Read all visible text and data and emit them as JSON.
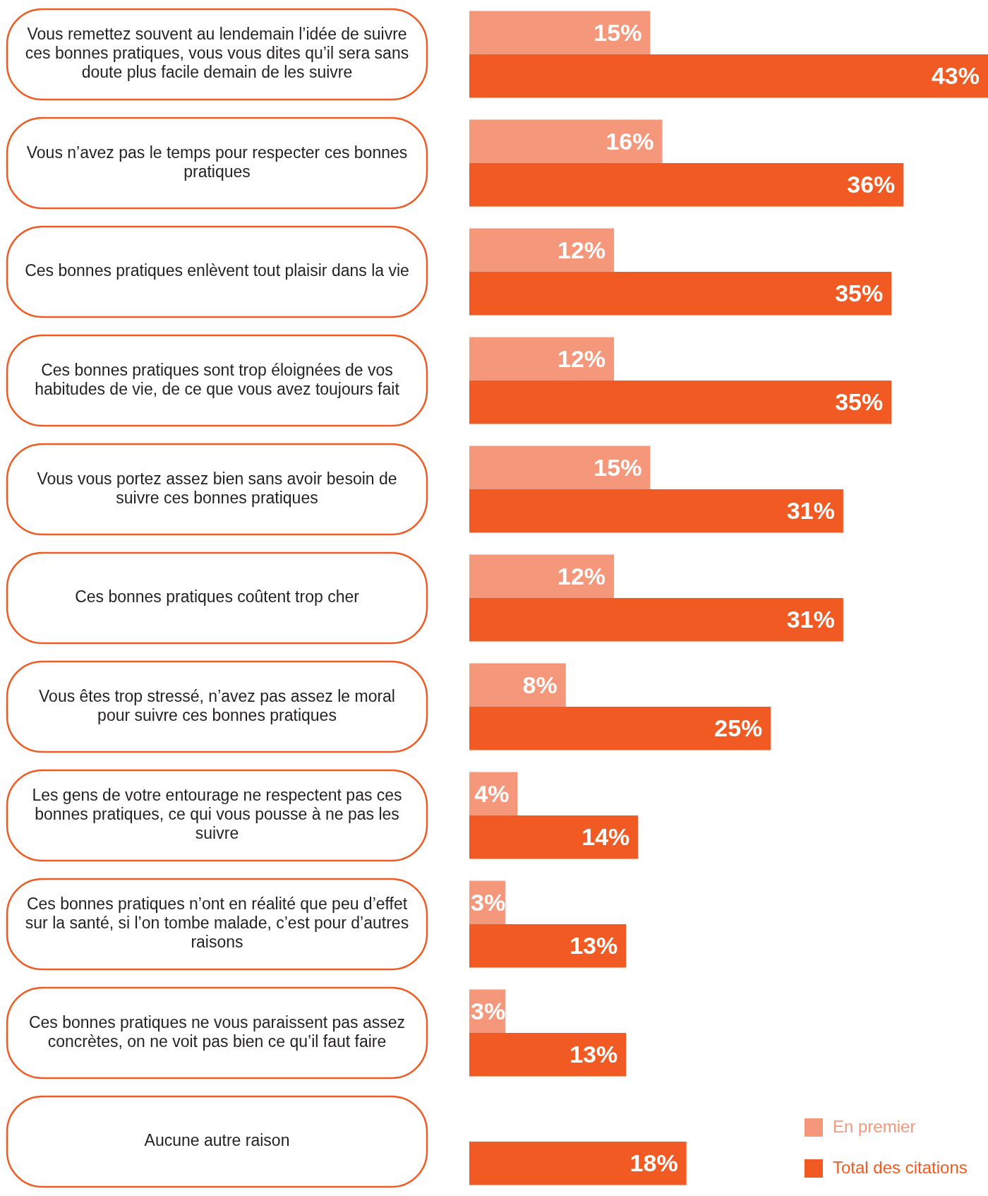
{
  "chart_data": {
    "type": "bar",
    "orientation": "horizontal",
    "categories": [
      "Vous remettez souvent au lendemain l’idée de suivre ces bonnes pratiques, vous vous dites qu’il sera sans doute plus facile demain de les suivre",
      "Vous n’avez pas le temps pour respecter ces bonnes pratiques",
      "Ces bonnes pratiques enlèvent tout plaisir dans la vie",
      "Ces bonnes pratiques sont trop éloignées de vos habitudes de vie, de ce que vous avez toujours fait",
      "Vous vous portez assez bien sans avoir besoin de suivre ces bonnes pratiques",
      "Ces bonnes pratiques coûtent trop cher",
      "Vous êtes trop stressé, n’avez pas assez le moral pour suivre ces bonnes pratiques",
      "Les gens de votre entourage ne respectent pas ces bonnes pratiques, ce qui vous pousse à ne pas les suivre",
      "Ces bonnes pratiques n’ont en réalité que peu d’effet sur la santé, si l’on tombe malade, c’est pour d’autres raisons",
      "Ces bonnes pratiques ne vous paraissent pas assez concrètes, on ne voit pas bien ce qu’il faut faire",
      "Aucune autre raison"
    ],
    "series": [
      {
        "name": "En premier",
        "color": "#f4977a",
        "values": [
          15,
          16,
          12,
          12,
          15,
          12,
          8,
          4,
          3,
          3,
          null
        ],
        "value_labels": [
          "15%",
          "16%",
          "12%",
          "12%",
          "15%",
          "12%",
          "8%",
          "4%",
          "3%",
          "3%",
          null
        ]
      },
      {
        "name": "Total des citations",
        "color": "#f15a22",
        "values": [
          43,
          36,
          35,
          35,
          31,
          31,
          25,
          14,
          13,
          13,
          18
        ],
        "value_labels": [
          "43%",
          "36%",
          "35%",
          "35%",
          "31%",
          "31%",
          "25%",
          "14%",
          "13%",
          "13%",
          "18%"
        ]
      }
    ],
    "legend": "bottom right"
  }
}
